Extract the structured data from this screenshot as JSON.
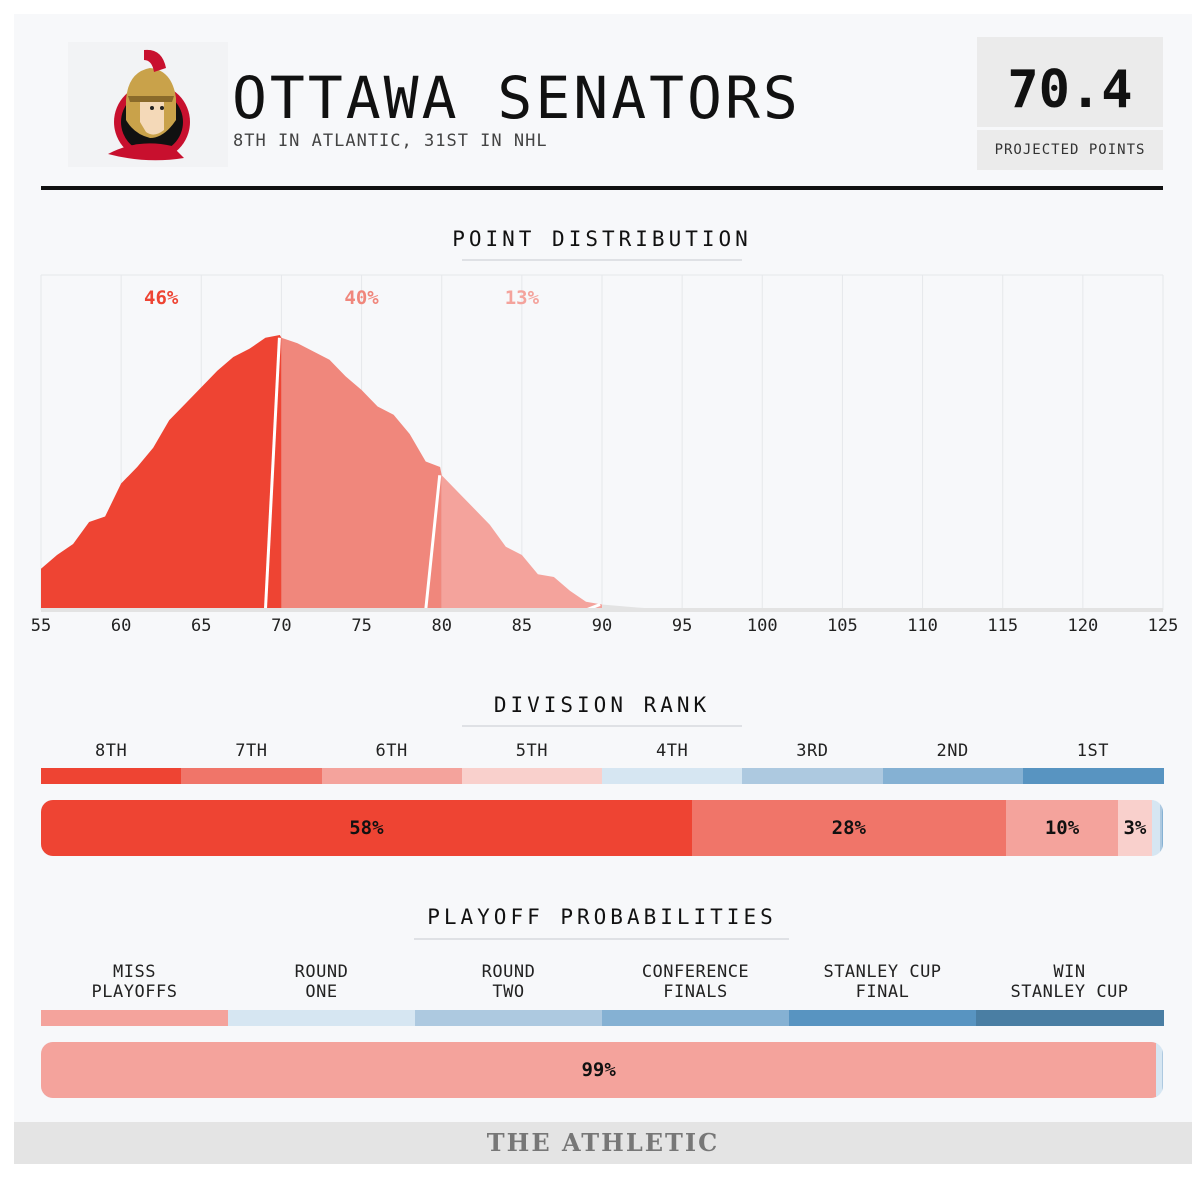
{
  "header": {
    "team": "OTTAWA SENATORS",
    "subtitle": "8TH IN ATLANTIC, 31ST IN NHL",
    "projected_value": "70.4",
    "projected_label": "PROJECTED POINTS",
    "logo_icon": "senators-logo-icon"
  },
  "sections": {
    "points": "POINT DISTRIBUTION",
    "division": "DIVISION RANK",
    "playoff": "PLAYOFF PROBABILITIES"
  },
  "footer": "THE ATHLETIC",
  "colors": {
    "red_dark": "#ee4433",
    "red_mid": "#f0877c",
    "red_light": "#f4a39c",
    "red_pale": "#f9d0cc",
    "blue_pale": "#d6e6f2",
    "blue_light": "#adc9e0",
    "blue_mid": "#85b1d3",
    "blue_dark": "#5894c1",
    "blue_darkest": "#4a7ea3",
    "grey_tail": "#e3e3e3"
  },
  "chart_data": [
    {
      "type": "area",
      "title": "POINT DISTRIBUTION",
      "x_ticks": [
        55,
        60,
        65,
        70,
        75,
        80,
        85,
        90,
        95,
        100,
        105,
        110,
        115,
        120,
        125
      ],
      "xlim": [
        55,
        125
      ],
      "x": [
        55,
        56,
        57,
        58,
        59,
        60,
        61,
        62,
        63,
        64,
        65,
        66,
        67,
        68,
        69,
        69.9,
        70,
        71,
        72,
        73,
        74,
        75,
        76,
        77,
        78,
        79,
        79.9,
        80,
        81,
        82,
        83,
        84,
        85,
        86,
        87,
        88,
        89,
        90,
        91,
        92,
        93,
        94,
        95,
        96,
        97,
        98,
        100,
        125
      ],
      "y": [
        0.15,
        0.2,
        0.24,
        0.32,
        0.34,
        0.46,
        0.52,
        0.59,
        0.69,
        0.75,
        0.81,
        0.87,
        0.92,
        0.95,
        0.99,
        1.0,
        0.99,
        0.97,
        0.94,
        0.91,
        0.85,
        0.8,
        0.74,
        0.71,
        0.64,
        0.54,
        0.52,
        0.49,
        0.43,
        0.37,
        0.31,
        0.23,
        0.2,
        0.13,
        0.12,
        0.07,
        0.03,
        0.02,
        0.015,
        0.01,
        0.006,
        0.004,
        0.002,
        0.0015,
        0.001,
        0.0008,
        0.0005,
        0
      ],
      "bands": [
        {
          "from": 55,
          "to": 70,
          "label": "46%",
          "color": "#ee4433"
        },
        {
          "from": 70,
          "to": 80,
          "label": "40%",
          "color": "#f0877c"
        },
        {
          "from": 80,
          "to": 90,
          "label": "13%",
          "color": "#f4a39c"
        },
        {
          "from": 90,
          "to": 125,
          "label": "",
          "color": "#e3e3e3"
        }
      ],
      "grid": true
    },
    {
      "type": "bar",
      "title": "DIVISION RANK",
      "categories": [
        "8TH",
        "7TH",
        "6TH",
        "5TH",
        "4TH",
        "3RD",
        "2ND",
        "1ST"
      ],
      "category_colors": [
        "#ee4433",
        "#f07569",
        "#f4a39c",
        "#f9d0cc",
        "#d6e6f2",
        "#adc9e0",
        "#85b1d3",
        "#5894c1"
      ],
      "values": [
        58,
        28,
        10,
        3,
        0.7,
        0.2,
        0.1,
        0
      ],
      "labels": [
        "58%",
        "28%",
        "10%",
        "3%",
        "",
        "",
        "",
        ""
      ]
    },
    {
      "type": "bar",
      "title": "PLAYOFF PROBABILITIES",
      "categories": [
        "MISS PLAYOFFS",
        "ROUND ONE",
        "ROUND TWO",
        "CONFERENCE FINALS",
        "STANLEY CUP FINAL",
        "WIN STANLEY CUP"
      ],
      "category_lines": [
        [
          "MISS",
          "PLAYOFFS"
        ],
        [
          "ROUND",
          "ONE"
        ],
        [
          "ROUND",
          "TWO"
        ],
        [
          "CONFERENCE",
          "FINALS"
        ],
        [
          "STANLEY CUP",
          "FINAL"
        ],
        [
          "WIN",
          "STANLEY CUP"
        ]
      ],
      "category_colors": [
        "#f4a39c",
        "#d6e6f2",
        "#adc9e0",
        "#85b1d3",
        "#5894c1",
        "#4a7ea3"
      ],
      "values": [
        99.4,
        0.5,
        0.1,
        0,
        0,
        0
      ],
      "labels": [
        "99%",
        "",
        "",
        "",
        "",
        ""
      ]
    }
  ]
}
